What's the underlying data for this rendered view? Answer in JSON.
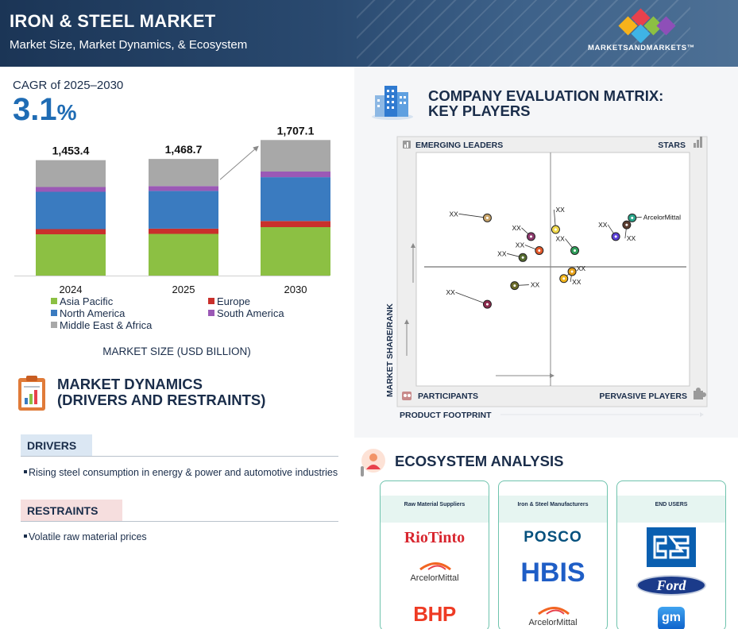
{
  "header": {
    "title": "IRON & STEEL MARKET",
    "subtitle": "Market Size, Market Dynamics, & Ecosystem",
    "brand": "MARKETSANDMARKETS™"
  },
  "cagr": {
    "label": "CAGR of 2025–2030",
    "value": "3.1",
    "unit": "%"
  },
  "market_size_label": "MARKET SIZE (USD BILLION)",
  "chart_data": [
    {
      "type": "bar",
      "stacked": true,
      "categories": [
        "2024",
        "2025",
        "2030"
      ],
      "totals": [
        1453.4,
        1468.7,
        1707.1
      ],
      "total_labels": [
        "1,453.4",
        "1,468.7",
        "1,707.1"
      ],
      "series": [
        {
          "name": "Asia Pacific",
          "color": "#8cc043",
          "values": [
            520,
            525,
            610
          ]
        },
        {
          "name": "Europe",
          "color": "#c9302c",
          "values": [
            65,
            66,
            77
          ]
        },
        {
          "name": "North America",
          "color": "#3a7bc0",
          "values": [
            470,
            475,
            552
          ]
        },
        {
          "name": "South America",
          "color": "#9b59b6",
          "values": [
            60,
            61,
            71
          ]
        },
        {
          "name": "Middle East & Africa",
          "color": "#a8a8a8",
          "values": [
            338.4,
            341.7,
            397.1
          ]
        }
      ],
      "legend_placement": "bottom",
      "grid": false
    },
    {
      "type": "scatter",
      "title": "COMPANY EVALUATION MATRIX: KEY PLAYERS",
      "xlabel": "PRODUCT FOOTPRINT",
      "ylabel": "MARKET SHARE/RANK",
      "quadrants": {
        "top_left": "EMERGING LEADERS",
        "top_right": "STARS",
        "bottom_left": "PARTICIPANTS",
        "bottom_right": "PERVASIVE PLAYERS"
      },
      "points": [
        {
          "label": "XX",
          "x": 0.26,
          "y": 0.72,
          "color": "#c8a46a"
        },
        {
          "label": "XX",
          "x": 0.42,
          "y": 0.64,
          "color": "#8e3a6e"
        },
        {
          "label": "XX",
          "x": 0.51,
          "y": 0.67,
          "color": "#f0d84a"
        },
        {
          "label": "XX",
          "x": 0.45,
          "y": 0.58,
          "color": "#e4592a"
        },
        {
          "label": "XX",
          "x": 0.39,
          "y": 0.55,
          "color": "#556b2f"
        },
        {
          "label": "XX",
          "x": 0.58,
          "y": 0.58,
          "color": "#2f9e5a"
        },
        {
          "label": "XX",
          "x": 0.73,
          "y": 0.64,
          "color": "#5a3fd6"
        },
        {
          "label": "XX",
          "x": 0.77,
          "y": 0.69,
          "color": "#5a3b2e"
        },
        {
          "label": "ArcelorMittal",
          "x": 0.79,
          "y": 0.72,
          "color": "#2aa58a"
        },
        {
          "label": "XX",
          "x": 0.54,
          "y": 0.46,
          "color": "#f2b51c"
        },
        {
          "label": "XX",
          "x": 0.57,
          "y": 0.49,
          "color": "#e6a018"
        },
        {
          "label": "XX",
          "x": 0.36,
          "y": 0.43,
          "color": "#6b6b2a"
        },
        {
          "label": "XX",
          "x": 0.26,
          "y": 0.35,
          "color": "#8a2a4c"
        }
      ]
    }
  ],
  "market_dynamics": {
    "title_line1": "MARKET DYNAMICS",
    "title_line2": "(DRIVERS AND RESTRAINTS)",
    "drivers_label": "DRIVERS",
    "drivers": [
      "Rising steel consumption in energy & power and automotive industries"
    ],
    "restraints_label": "RESTRAINTS",
    "restraints": [
      "Volatile raw material prices"
    ]
  },
  "matrix": {
    "title_line1": "COMPANY EVALUATION MATRIX:",
    "title_line2": "KEY PLAYERS"
  },
  "ecosystem": {
    "title": "ECOSYSTEM ANALYSIS",
    "columns": [
      {
        "header": "Raw Material Suppliers",
        "logos": [
          "RioTinto",
          "ArcelorMittal",
          "BHP"
        ]
      },
      {
        "header": "Iron & Steel Manufacturers",
        "logos": [
          "POSCO",
          "HBIS",
          "ArcelorMittal"
        ]
      },
      {
        "header": "END USERS",
        "logos": [
          "CSCEC",
          "Ford",
          "gm"
        ]
      }
    ]
  }
}
